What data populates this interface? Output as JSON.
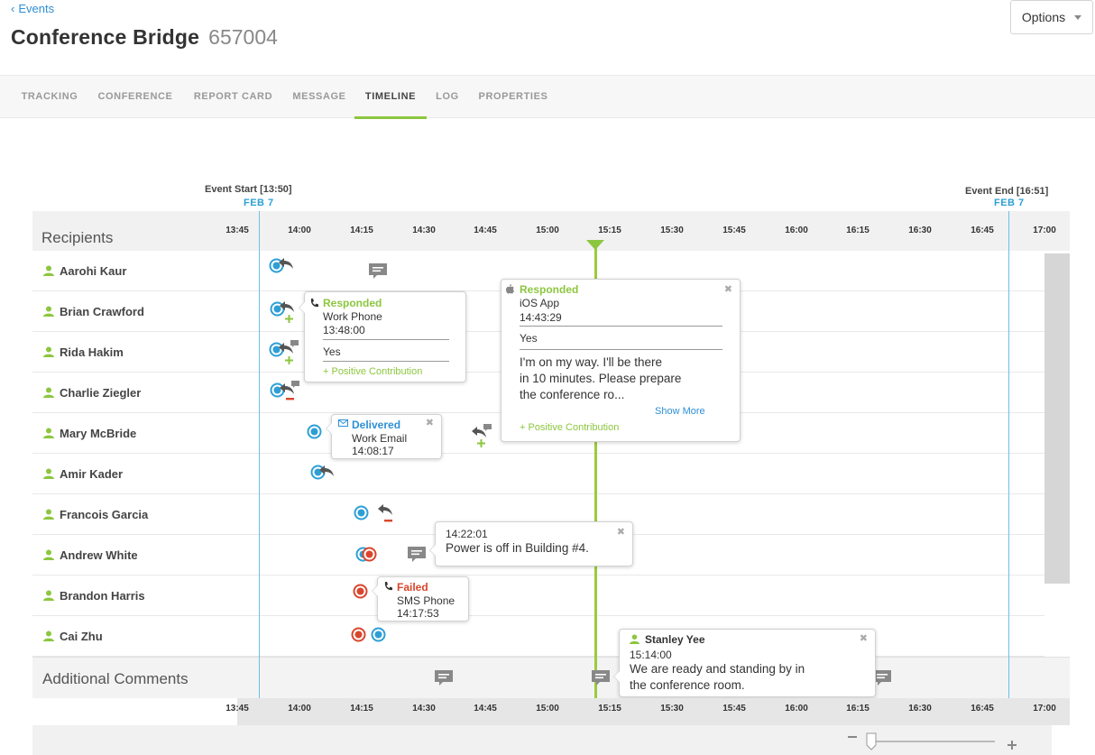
{
  "header": {
    "back_label": "Events",
    "title": "Conference Bridge",
    "bridge_id": "657004",
    "options_label": "Options"
  },
  "tabs": [
    {
      "label": "TRACKING",
      "active": false
    },
    {
      "label": "CONFERENCE",
      "active": false
    },
    {
      "label": "REPORT CARD",
      "active": false
    },
    {
      "label": "MESSAGE",
      "active": false
    },
    {
      "label": "TIMELINE",
      "active": true
    },
    {
      "label": "LOG",
      "active": false
    },
    {
      "label": "PROPERTIES",
      "active": false
    }
  ],
  "timeline": {
    "event_start_label": "Event Start [13:50]",
    "event_start_date": "FEB 7",
    "event_end_label": "Event End [16:51]",
    "event_end_date": "FEB 7",
    "recipients_title": "Recipients",
    "additional_comments_title": "Additional Comments",
    "ticks": [
      "13:45",
      "14:00",
      "14:15",
      "14:30",
      "14:45",
      "15:00",
      "15:15",
      "15:30",
      "15:45",
      "16:00",
      "16:15",
      "16:30",
      "16:45",
      "17:00"
    ],
    "recipients": [
      "Aarohi Kaur",
      "Brian Crawford",
      "Rida Hakim",
      "Charlie Ziegler",
      "Mary McBride",
      "Amir Kader",
      "Francois Garcia",
      "Andrew White",
      "Brandon Harris",
      "Cai Zhu"
    ]
  },
  "popups": {
    "brian": {
      "status": "Responded",
      "device": "Work Phone",
      "time": "13:48:00",
      "response": "Yes",
      "contribution": "+ Positive Contribution"
    },
    "ios": {
      "status": "Responded",
      "device": "iOS App",
      "time": "14:43:29",
      "response": "Yes",
      "message_line1": "I'm on my way. I'll be there",
      "message_line2": "in 10 minutes. Please prepare",
      "message_line3": "the conference ro...",
      "show_more": "Show More",
      "contribution": "+ Positive Contribution"
    },
    "mary": {
      "status": "Delivered",
      "device": "Work Email",
      "time": "14:08:17"
    },
    "andrew": {
      "time": "14:22:01",
      "message": "Power is off in Building #4."
    },
    "brandon": {
      "status": "Failed",
      "device": "SMS Phone",
      "time": "14:17:53"
    },
    "stanley": {
      "name": "Stanley Yee",
      "time": "15:14:00",
      "message_line1": "We are ready and standing by in",
      "message_line2": "the conference room."
    }
  },
  "colors": {
    "accent_green": "#8cc63f",
    "link_blue": "#2d8fd5",
    "event_line_blue": "#6fc0e6",
    "failed_red": "#d9462c"
  }
}
